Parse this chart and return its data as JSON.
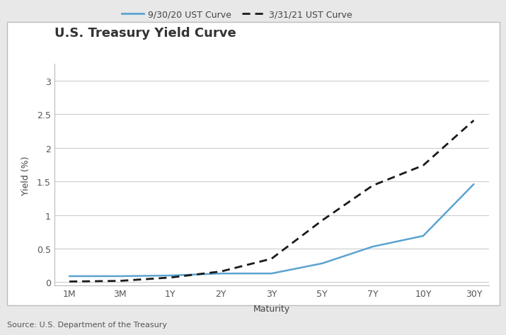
{
  "title": "U.S. Treasury Yield Curve",
  "xlabel": "Maturity",
  "ylabel": "Yield (%)",
  "source": "Source: U.S. Department of the Treasury",
  "x_labels": [
    "1M",
    "3M",
    "1Y",
    "2Y",
    "3Y",
    "5Y",
    "7Y",
    "10Y",
    "30Y"
  ],
  "x_positions": [
    0,
    1,
    2,
    3,
    4,
    5,
    6,
    7,
    8
  ],
  "curve1_label": "9/30/20 UST Curve",
  "curve1_color": "#5BA3D0",
  "curve1_values": [
    0.09,
    0.09,
    0.1,
    0.13,
    0.13,
    0.28,
    0.53,
    0.69,
    1.46
  ],
  "curve2_label": "3/31/21 UST Curve",
  "curve2_color": "#1a1a1a",
  "curve2_values": [
    0.01,
    0.02,
    0.07,
    0.16,
    0.35,
    0.92,
    1.44,
    1.74,
    2.41
  ],
  "ylim": [
    -0.05,
    3.25
  ],
  "yticks": [
    0,
    0.5,
    1.0,
    1.5,
    2.0,
    2.5,
    3.0
  ],
  "ytick_labels": [
    "0",
    "0.5",
    "1",
    "1.5",
    "2",
    "2.5",
    "3"
  ],
  "outer_bg_color": "#e8e8e8",
  "inner_bg_color": "#ffffff",
  "box_edge_color": "#cccccc",
  "grid_color": "#cccccc",
  "title_fontsize": 13,
  "label_fontsize": 9,
  "tick_fontsize": 9,
  "legend_fontsize": 9,
  "source_fontsize": 8
}
